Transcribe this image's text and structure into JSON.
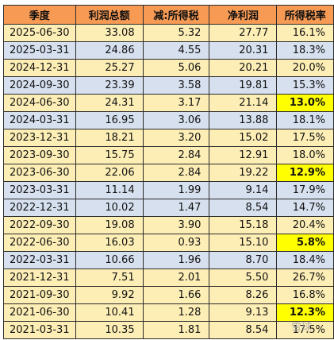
{
  "table": {
    "headers": [
      "季度",
      "利润总额",
      "减:所得税",
      "净利润",
      "所得税率"
    ],
    "rows": [
      {
        "q": "2025-06-30",
        "profit": "33.08",
        "tax": "5.32",
        "net": "27.77",
        "rate": "16.1%",
        "highlight": false,
        "band": "yellow"
      },
      {
        "q": "2025-03-31",
        "profit": "24.86",
        "tax": "4.55",
        "net": "20.31",
        "rate": "18.3%",
        "highlight": false,
        "band": "blue"
      },
      {
        "q": "2024-12-31",
        "profit": "25.27",
        "tax": "5.06",
        "net": "20.21",
        "rate": "20.0%",
        "highlight": false,
        "band": "yellow"
      },
      {
        "q": "2024-09-30",
        "profit": "23.39",
        "tax": "3.58",
        "net": "19.81",
        "rate": "15.3%",
        "highlight": false,
        "band": "blue"
      },
      {
        "q": "2024-06-30",
        "profit": "24.31",
        "tax": "3.17",
        "net": "21.14",
        "rate": "13.0%",
        "highlight": true,
        "band": "yellow"
      },
      {
        "q": "2024-03-31",
        "profit": "16.95",
        "tax": "3.06",
        "net": "13.88",
        "rate": "18.1%",
        "highlight": false,
        "band": "blue"
      },
      {
        "q": "2023-12-31",
        "profit": "18.21",
        "tax": "3.20",
        "net": "15.02",
        "rate": "17.5%",
        "highlight": false,
        "band": "yellow"
      },
      {
        "q": "2023-09-30",
        "profit": "15.75",
        "tax": "2.84",
        "net": "12.91",
        "rate": "18.0%",
        "highlight": false,
        "band": "yellow"
      },
      {
        "q": "2023-06-30",
        "profit": "22.06",
        "tax": "2.84",
        "net": "19.22",
        "rate": "12.9%",
        "highlight": true,
        "band": "yellow"
      },
      {
        "q": "2023-03-31",
        "profit": "11.14",
        "tax": "1.99",
        "net": "9.14",
        "rate": "17.9%",
        "highlight": false,
        "band": "blue"
      },
      {
        "q": "2022-12-31",
        "profit": "10.02",
        "tax": "1.47",
        "net": "8.54",
        "rate": "14.7%",
        "highlight": false,
        "band": "blue"
      },
      {
        "q": "2022-09-30",
        "profit": "19.08",
        "tax": "3.90",
        "net": "15.18",
        "rate": "20.4%",
        "highlight": false,
        "band": "yellow"
      },
      {
        "q": "2022-06-30",
        "profit": "16.03",
        "tax": "0.93",
        "net": "15.10",
        "rate": "5.8%",
        "highlight": true,
        "band": "yellow"
      },
      {
        "q": "2022-03-31",
        "profit": "10.66",
        "tax": "1.96",
        "net": "8.70",
        "rate": "18.4%",
        "highlight": false,
        "band": "blue"
      },
      {
        "q": "2021-12-31",
        "profit": "7.51",
        "tax": "2.01",
        "net": "5.50",
        "rate": "26.7%",
        "highlight": false,
        "band": "yellow"
      },
      {
        "q": "2021-09-30",
        "profit": "9.92",
        "tax": "1.66",
        "net": "8.26",
        "rate": "16.8%",
        "highlight": false,
        "band": "yellow"
      },
      {
        "q": "2021-06-30",
        "profit": "10.41",
        "tax": "1.28",
        "net": "9.13",
        "rate": "12.3%",
        "highlight": true,
        "band": "yellow"
      },
      {
        "q": "2021-03-31",
        "profit": "10.35",
        "tax": "1.81",
        "net": "8.54",
        "rate": "17.5%",
        "highlight": false,
        "band": "yellow"
      }
    ]
  },
  "watermark": "雪球"
}
